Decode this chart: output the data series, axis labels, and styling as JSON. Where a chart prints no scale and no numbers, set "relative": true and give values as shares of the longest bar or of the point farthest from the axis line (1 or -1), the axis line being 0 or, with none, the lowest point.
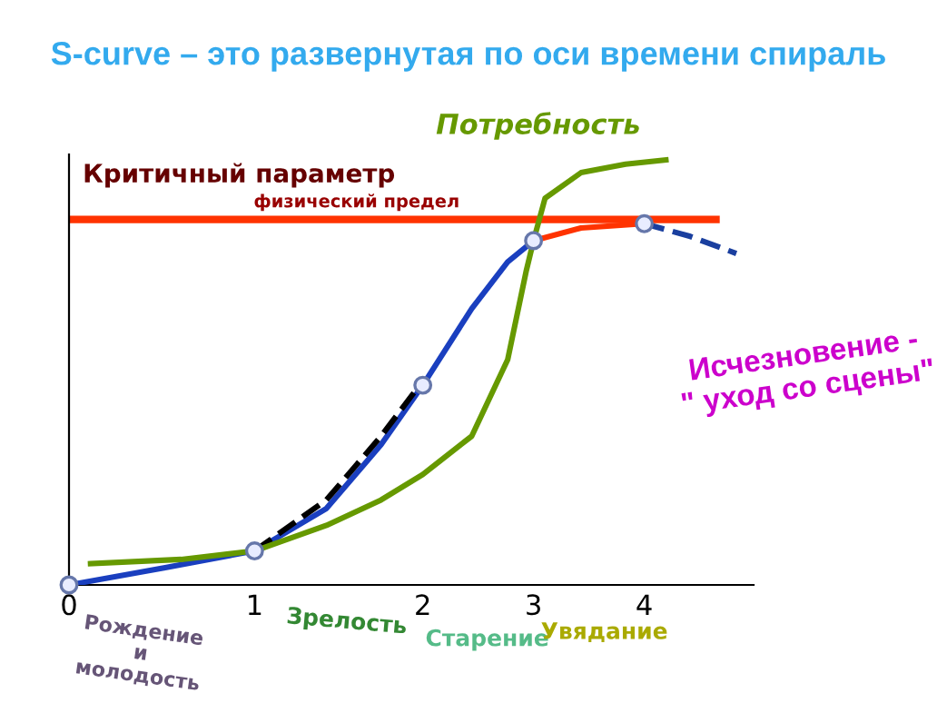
{
  "chart_data": {
    "type": "line",
    "title": "S-curve – это развернутая по оси времени спираль",
    "ylabel": "Критичный параметр",
    "relative": true,
    "xlim": [
      0,
      4.76
    ],
    "xticks": [
      0,
      {
        "value": 1.29,
        "label": "1"
      },
      {
        "value": 2.46,
        "label": "2"
      },
      {
        "value": 3.23,
        "label": "3"
      },
      {
        "value": 4.0,
        "label": "4"
      }
    ],
    "legend": false,
    "grid": false,
    "series": [
      {
        "color": "#ff3300",
        "x": [
          3.23,
          3.56,
          4.0
        ],
        "values": [
          0.81,
          0.84,
          0.85
        ]
      },
      {
        "color": "#1a3fbf",
        "x": [
          0,
          0.66,
          1.29,
          1.79,
          2.17,
          2.46,
          2.8,
          3.05,
          3.23
        ],
        "values": [
          0,
          0.04,
          0.08,
          0.18,
          0.33,
          0.47,
          0.65,
          0.76,
          0.81
        ]
      },
      {
        "color": "#000000",
        "line_style": "dashed",
        "x": [
          1.29,
          1.79,
          2.17,
          2.46
        ],
        "values": [
          0.08,
          0.2,
          0.35,
          0.48
        ]
      },
      {
        "color": "#1a3f9f",
        "line_style": "dashed",
        "x": [
          4.0,
          4.32,
          4.64
        ],
        "values": [
          0.85,
          0.82,
          0.78
        ]
      },
      {
        "name": "Потребность",
        "color": "#669900",
        "x": [
          0.15,
          0.78,
          1.29,
          1.79,
          2.17,
          2.46,
          2.8,
          3.05,
          3.18,
          3.23,
          3.31,
          3.56,
          3.87,
          4.15
        ],
        "values": [
          0.05,
          0.06,
          0.08,
          0.14,
          0.2,
          0.26,
          0.35,
          0.53,
          0.74,
          0.81,
          0.91,
          0.97,
          0.99,
          1.0
        ]
      },
      {
        "type": "scatter",
        "marker": "circle",
        "color": "#6677aa",
        "x": [
          0,
          1.29,
          2.46,
          3.23,
          4.0
        ],
        "values": [
          0,
          0.08,
          0.47,
          0.81,
          0.85
        ]
      }
    ],
    "ref_lines": [
      {
        "axis": "y",
        "value": 0.86,
        "label": "физический предел",
        "color": "#ff3300"
      }
    ],
    "annotations": [
      "Исчезновение -\n\" уход со сцены\"",
      "Рождение\nи\nмолодость",
      "Зрелость",
      "Старение",
      "Увядание"
    ]
  }
}
